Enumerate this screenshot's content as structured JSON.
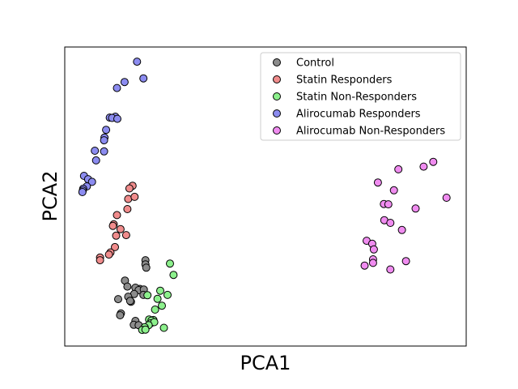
{
  "chart_data": {
    "type": "scatter",
    "xlabel": "PCA1",
    "ylabel": "PCA2",
    "xlim": [
      0,
      100
    ],
    "ylim": [
      0,
      100
    ],
    "xticks": false,
    "yticks": false,
    "grid": false,
    "legend_position": "upper right",
    "series": [
      {
        "name": "Control",
        "color": "#8c8c8c",
        "points": [
          [
            20.1,
            28.7
          ],
          [
            20.1,
            27.3
          ],
          [
            20.3,
            26.2
          ],
          [
            18.7,
            19.1
          ],
          [
            17.6,
            19.5
          ],
          [
            18.4,
            18.7
          ],
          [
            19.7,
            18.9
          ],
          [
            15.0,
            21.9
          ],
          [
            15.6,
            19.9
          ],
          [
            17.3,
            17.4
          ],
          [
            19.6,
            17.1
          ],
          [
            13.3,
            15.7
          ],
          [
            15.8,
            16.5
          ],
          [
            16.5,
            14.8
          ],
          [
            16.3,
            15.1
          ],
          [
            14.0,
            10.9
          ],
          [
            13.8,
            10.3
          ],
          [
            17.6,
            8.4
          ],
          [
            17.2,
            7.1
          ],
          [
            18.4,
            7.0
          ]
        ]
      },
      {
        "name": "Statin Responders",
        "color": "#f08c8c",
        "points": [
          [
            16.9,
            53.6
          ],
          [
            16.1,
            52.7
          ],
          [
            15.8,
            49.2
          ],
          [
            17.4,
            49.9
          ],
          [
            15.6,
            45.8
          ],
          [
            13.0,
            43.8
          ],
          [
            12.2,
            40.7
          ],
          [
            12.0,
            40.2
          ],
          [
            13.9,
            39.1
          ],
          [
            12.8,
            36.9
          ],
          [
            15.3,
            37.1
          ],
          [
            12.5,
            33.1
          ],
          [
            11.4,
            31.3
          ],
          [
            11.0,
            30.6
          ],
          [
            8.8,
            29.6
          ],
          [
            8.8,
            28.7
          ]
        ]
      },
      {
        "name": "Statin Non-Responders",
        "color": "#8cf08c",
        "points": [
          [
            26.2,
            27.6
          ],
          [
            27.1,
            23.8
          ],
          [
            23.8,
            18.5
          ],
          [
            25.6,
            17.1
          ],
          [
            23.1,
            15.8
          ],
          [
            24.2,
            13.5
          ],
          [
            22.5,
            12.2
          ],
          [
            20.6,
            17.0
          ],
          [
            21.0,
            8.9
          ],
          [
            22.1,
            8.7
          ],
          [
            21.6,
            8.5
          ],
          [
            21.4,
            7.6
          ],
          [
            22.3,
            8.0
          ],
          [
            20.9,
            7.0
          ],
          [
            19.9,
            6.3
          ],
          [
            19.3,
            5.4
          ],
          [
            24.7,
            6.1
          ],
          [
            20.1,
            5.5
          ]
        ]
      },
      {
        "name": "Alirocumab Responders",
        "color": "#8c8cf0",
        "points": [
          [
            18.0,
            95.1
          ],
          [
            19.6,
            89.5
          ],
          [
            14.9,
            88.3
          ],
          [
            13.0,
            86.3
          ],
          [
            12.6,
            76.7
          ],
          [
            11.2,
            76.4
          ],
          [
            11.8,
            76.3
          ],
          [
            13.1,
            76.0
          ],
          [
            10.3,
            72.3
          ],
          [
            9.9,
            69.7
          ],
          [
            9.8,
            68.8
          ],
          [
            7.5,
            65.3
          ],
          [
            9.8,
            65.1
          ],
          [
            7.8,
            62.1
          ],
          [
            4.8,
            56.9
          ],
          [
            5.8,
            55.8
          ],
          [
            6.8,
            54.9
          ],
          [
            5.5,
            53.4
          ],
          [
            4.6,
            52.6
          ],
          [
            4.5,
            52.0
          ],
          [
            4.4,
            51.5
          ]
        ]
      },
      {
        "name": "Alirocumab Non-Responders",
        "color": "#f08cf0",
        "points": [
          [
            91.8,
            61.6
          ],
          [
            89.4,
            60.0
          ],
          [
            83.1,
            59.1
          ],
          [
            78.0,
            54.7
          ],
          [
            82.0,
            52.1
          ],
          [
            95.1,
            49.6
          ],
          [
            79.5,
            47.5
          ],
          [
            80.6,
            47.4
          ],
          [
            87.4,
            46.0
          ],
          [
            79.6,
            42.1
          ],
          [
            81.1,
            41.2
          ],
          [
            84.0,
            38.8
          ],
          [
            75.2,
            35.2
          ],
          [
            76.6,
            34.2
          ],
          [
            77.0,
            32.3
          ],
          [
            76.8,
            29.0
          ],
          [
            76.8,
            27.8
          ],
          [
            85.0,
            28.4
          ],
          [
            74.7,
            26.9
          ],
          [
            81.1,
            25.6
          ]
        ]
      }
    ]
  }
}
